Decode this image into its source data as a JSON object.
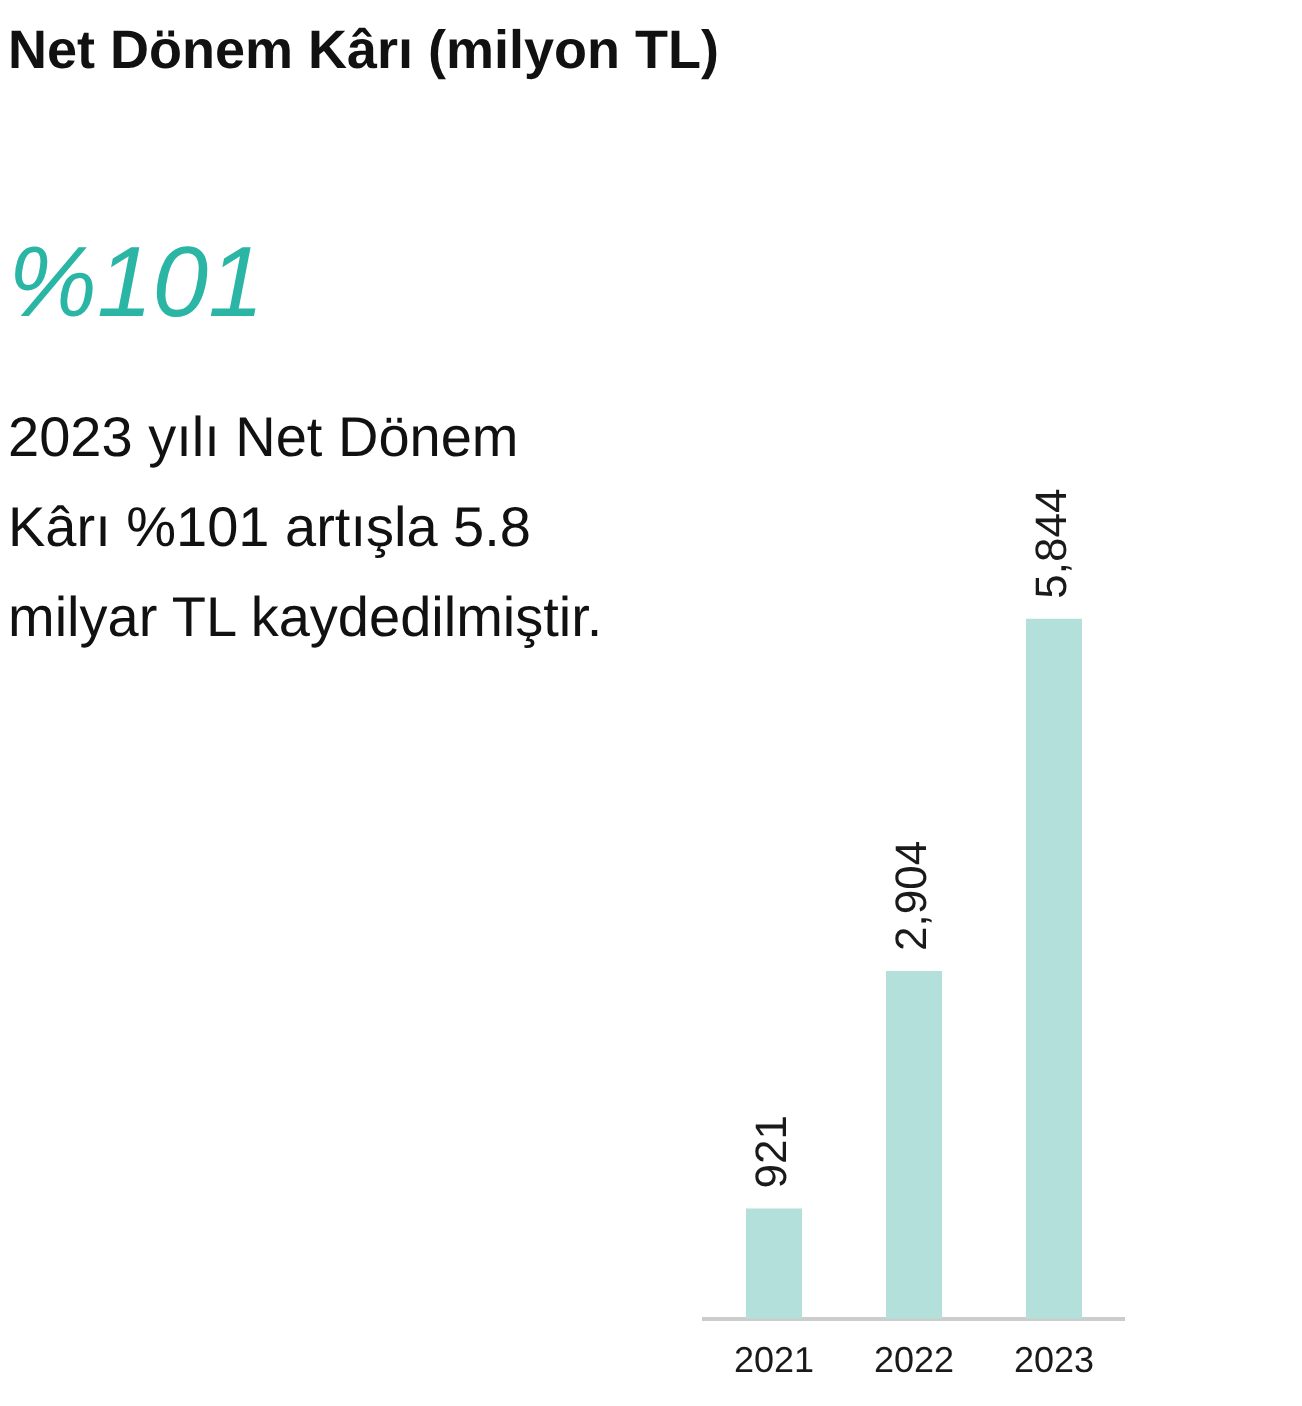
{
  "chart_data": {
    "type": "bar",
    "title": "Net Dönem Kârı (milyon TL)",
    "categories": [
      "2021",
      "2022",
      "2023"
    ],
    "values": [
      921,
      2904,
      5844
    ],
    "color": "#b3e0da",
    "value_labels": [
      "921",
      "2,904",
      "5,844"
    ],
    "annotations": [
      "%101",
      "2023 yılı Net Dönem Kârı %101 artışla 5.8 milyar TL kaydedilmiştir."
    ]
  }
}
